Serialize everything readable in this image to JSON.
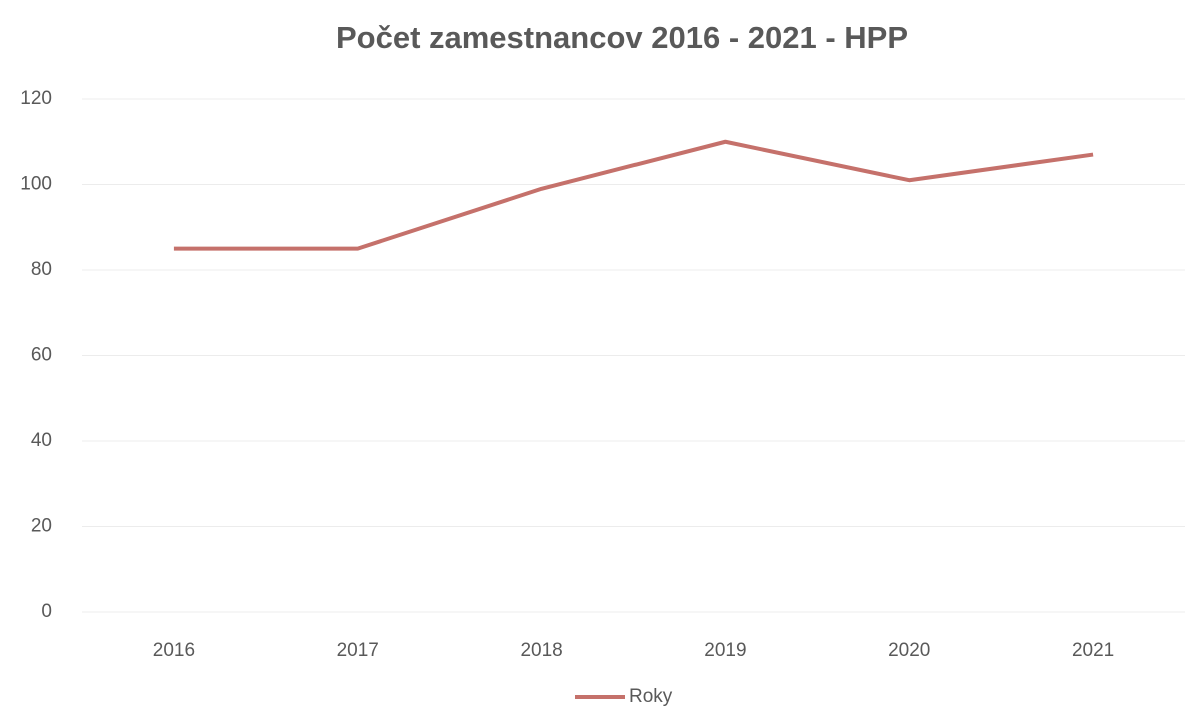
{
  "chart_data": {
    "type": "line",
    "title": "Počet zamestnancov 2016 - 2021 - HPP",
    "categories": [
      "2016",
      "2017",
      "2018",
      "2019",
      "2020",
      "2021"
    ],
    "series": [
      {
        "name": "Roky",
        "color": "#c5716b",
        "values": [
          85,
          85,
          99,
          110,
          101,
          107
        ]
      }
    ],
    "ylim": [
      0,
      120
    ],
    "yticks": [
      0,
      20,
      40,
      60,
      80,
      100,
      120
    ],
    "grid": true,
    "legend": "bottom"
  }
}
